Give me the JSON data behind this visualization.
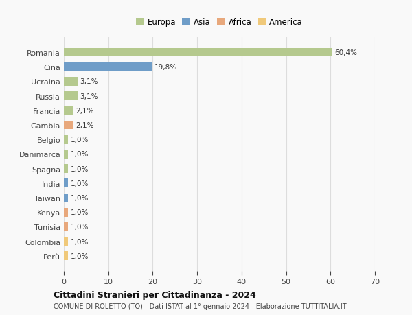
{
  "countries": [
    "Romania",
    "Cina",
    "Ucraina",
    "Russia",
    "Francia",
    "Gambia",
    "Belgio",
    "Danimarca",
    "Spagna",
    "India",
    "Taiwan",
    "Kenya",
    "Tunisia",
    "Colombia",
    "Perù"
  ],
  "values": [
    60.4,
    19.8,
    3.1,
    3.1,
    2.1,
    2.1,
    1.0,
    1.0,
    1.0,
    1.0,
    1.0,
    1.0,
    1.0,
    1.0,
    1.0
  ],
  "labels": [
    "60,4%",
    "19,8%",
    "3,1%",
    "3,1%",
    "2,1%",
    "2,1%",
    "1,0%",
    "1,0%",
    "1,0%",
    "1,0%",
    "1,0%",
    "1,0%",
    "1,0%",
    "1,0%",
    "1,0%"
  ],
  "bar_colors": [
    "#b5c98e",
    "#6f9dc8",
    "#b5c98e",
    "#b5c98e",
    "#b5c98e",
    "#e8a87c",
    "#b5c98e",
    "#b5c98e",
    "#b5c98e",
    "#6f9dc8",
    "#6f9dc8",
    "#e8a87c",
    "#e8a87c",
    "#f0c97a",
    "#f0c97a"
  ],
  "continents": [
    "Europa",
    "Asia",
    "Africa",
    "America"
  ],
  "legend_colors": [
    "#b5c98e",
    "#6f9dc8",
    "#e8a87c",
    "#f0c97a"
  ],
  "title": "Cittadini Stranieri per Cittadinanza - 2024",
  "subtitle": "COMUNE DI ROLETTO (TO) - Dati ISTAT al 1° gennaio 2024 - Elaborazione TUTTITALIA.IT",
  "xlim": [
    0,
    70
  ],
  "xticks": [
    0,
    10,
    20,
    30,
    40,
    50,
    60,
    70
  ],
  "bg_color": "#f9f9f9",
  "grid_color": "#dddddd"
}
